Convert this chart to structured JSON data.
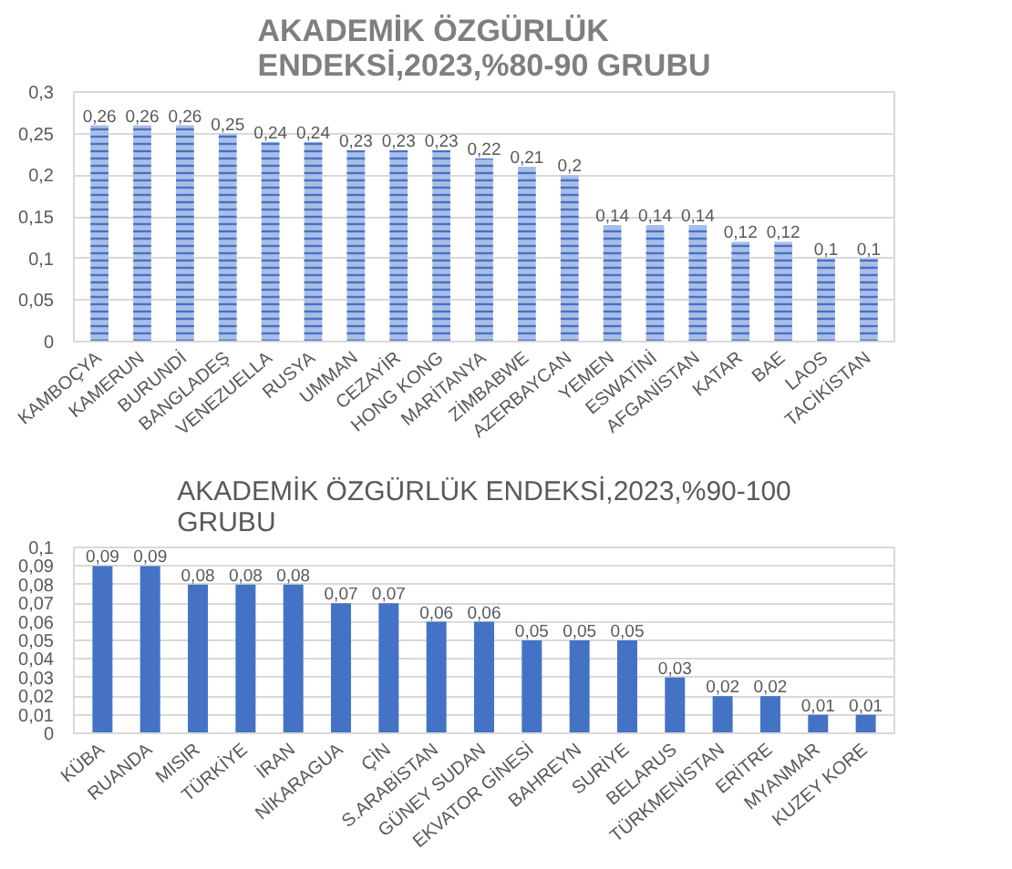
{
  "chart_data": [
    {
      "type": "bar",
      "title": "AKADEMİK ÖZGÜRLÜK ENDEKSİ,2023,%80-90 GRUBU",
      "categories": [
        "KAMBOÇYA",
        "KAMERUN",
        "BURUNDİ",
        "BANGLADEŞ",
        "VENEZUELLA",
        "RUSYA",
        "UMMAN",
        "CEZAYİR",
        "HONG KONG",
        "MARİTANYA",
        "ZİMBABWE",
        "AZERBAYCAN",
        "YEMEN",
        "ESWATİNİ",
        "AFGANİSTAN",
        "KATAR",
        "BAE",
        "LAOS",
        "TACİKİSTAN"
      ],
      "values": [
        0.26,
        0.26,
        0.26,
        0.25,
        0.24,
        0.24,
        0.23,
        0.23,
        0.23,
        0.22,
        0.21,
        0.2,
        0.14,
        0.14,
        0.14,
        0.12,
        0.12,
        0.1,
        0.1
      ],
      "color": "#4472c4",
      "value_labels": [
        "0,26",
        "0,26",
        "0,26",
        "0,25",
        "0,24",
        "0,24",
        "0,23",
        "0,23",
        "0,23",
        "0,22",
        "0,21",
        "0,2",
        "0,14",
        "0,14",
        "0,14",
        "0,12",
        "0,12",
        "0,1",
        "0,1"
      ],
      "ylim": [
        0,
        0.3
      ],
      "yticks": [
        0,
        {
          "value": 0.05,
          "label": "0,05"
        },
        {
          "value": 0.1,
          "label": "0,1"
        },
        {
          "value": 0.15,
          "label": "0,15"
        },
        {
          "value": 0.2,
          "label": "0,2"
        },
        {
          "value": 0.25,
          "label": "0,25"
        },
        {
          "value": 0.3,
          "label": "0,3"
        }
      ],
      "grid": "y"
    },
    {
      "type": "bar",
      "title": "AKADEMİK ÖZGÜRLÜK ENDEKSİ,2023,%90-100 GRUBU",
      "categories": [
        "KÜBA",
        "RUANDA",
        "MISIR",
        "TÜRKİYE",
        "İRAN",
        "NİKARAGUA",
        "ÇİN",
        "S.ARABİSTAN",
        "GÜNEY SUDAN",
        "EKVATOR GİNESİ",
        "BAHREYN",
        "SURİYE",
        "BELARUS",
        "TÜRKMENİSTAN",
        "ERİTRE",
        "MYANMAR",
        "KUZEY KORE"
      ],
      "values": [
        0.09,
        0.09,
        0.08,
        0.08,
        0.08,
        0.07,
        0.07,
        0.06,
        0.06,
        0.05,
        0.05,
        0.05,
        0.03,
        0.02,
        0.02,
        0.01,
        0.01
      ],
      "color": "#4472c4",
      "value_labels": [
        "0,09",
        "0,09",
        "0,08",
        "0,08",
        "0,08",
        "0,07",
        "0,07",
        "0,06",
        "0,06",
        "0,05",
        "0,05",
        "0,05",
        "0,03",
        "0,02",
        "0,02",
        "0,01",
        "0,01"
      ],
      "ylim": [
        0,
        0.1
      ],
      "yticks": [
        0,
        {
          "value": 0.01,
          "label": "0,01"
        },
        {
          "value": 0.02,
          "label": "0,02"
        },
        {
          "value": 0.03,
          "label": "0,03"
        },
        {
          "value": 0.04,
          "label": "0,04"
        },
        {
          "value": 0.05,
          "label": "0,05"
        },
        {
          "value": 0.06,
          "label": "0,06"
        },
        {
          "value": 0.07,
          "label": "0,07"
        },
        {
          "value": 0.08,
          "label": "0,08"
        },
        {
          "value": 0.09,
          "label": "0,09"
        },
        {
          "value": 0.1,
          "label": "0,1"
        }
      ],
      "grid": "y"
    }
  ]
}
